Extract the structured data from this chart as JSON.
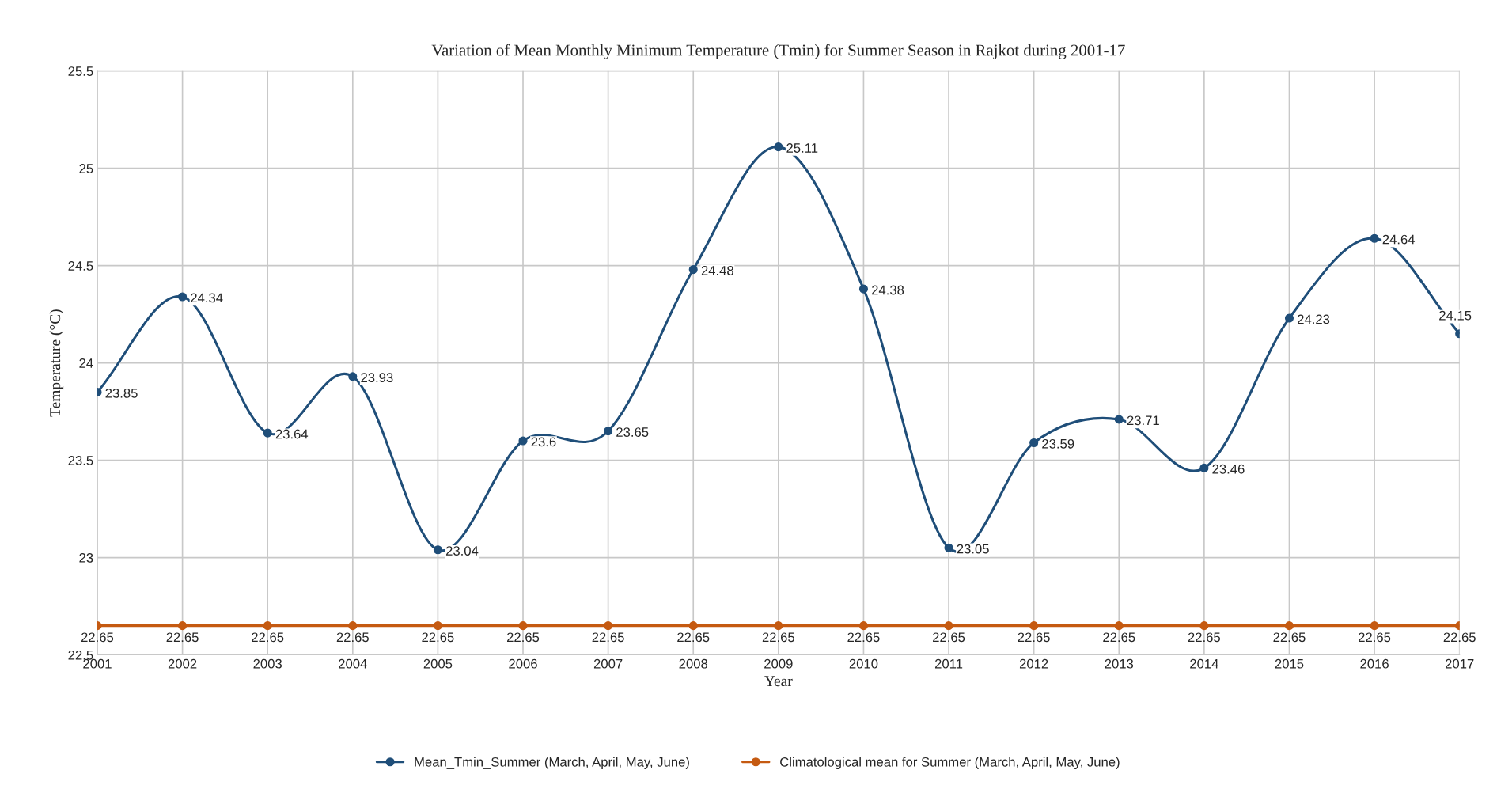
{
  "chart_data": {
    "type": "line",
    "title": "Variation of Mean Monthly Minimum Temperature (Tmin) for Summer Season in Rajkot during 2001-17",
    "xlabel": "Year",
    "ylabel": "Temperature (°C)",
    "categories": [
      "2001",
      "2002",
      "2003",
      "2004",
      "2005",
      "2006",
      "2007",
      "2008",
      "2009",
      "2010",
      "2011",
      "2012",
      "2013",
      "2014",
      "2015",
      "2016",
      "2017"
    ],
    "series": [
      {
        "name": "Mean_Tmin_Summer (March, April, May, June)",
        "color": "#1f4e79",
        "values": [
          23.85,
          24.34,
          23.64,
          23.93,
          23.04,
          23.6,
          23.65,
          24.48,
          25.11,
          24.38,
          23.05,
          23.59,
          23.71,
          23.46,
          24.23,
          24.64,
          24.15
        ]
      },
      {
        "name": "Climatological mean for Summer (March, April, May, June)",
        "color": "#c55a11",
        "values": [
          22.65,
          22.65,
          22.65,
          22.65,
          22.65,
          22.65,
          22.65,
          22.65,
          22.65,
          22.65,
          22.65,
          22.65,
          22.65,
          22.65,
          22.65,
          22.65,
          22.65
        ]
      }
    ],
    "ylim": [
      22.5,
      25.5
    ],
    "yticks": [
      22.5,
      23,
      23.5,
      24,
      24.5,
      25,
      25.5
    ],
    "grid": true,
    "legend": "bottom",
    "marker": "circle",
    "line_style": "solid",
    "data_labels": true
  }
}
